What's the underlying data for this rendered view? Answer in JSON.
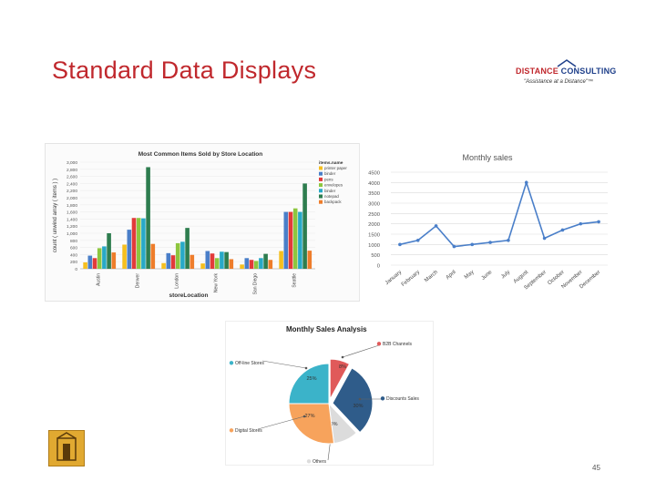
{
  "slide": {
    "title": "Standard Data Displays",
    "page_number": "45",
    "logo": {
      "name_part1": "DISTANCE",
      "name_part2": "CONSULTING",
      "tagline": "\"Assistance at a Distance\"™"
    }
  },
  "colors": {
    "title": "#c0282d",
    "line": "#4a7fc9"
  },
  "chart_data": [
    {
      "type": "bar",
      "title": "Most Common Items Sold by Store Location",
      "xlabel": "storeLocation",
      "ylabel": "count ( unwind array ( items ) )",
      "ylim": [
        0,
        3000
      ],
      "yticks": [
        "3,000",
        "2,800",
        "2,600",
        "2,400",
        "2,200",
        "2,000",
        "1,800",
        "1,600",
        "1,400",
        "1,200",
        "1,000",
        "800",
        "600",
        "400",
        "200",
        "0"
      ],
      "legend_title": "items.name",
      "legend_position": "top-right",
      "categories": [
        "Austin",
        "Denver",
        "London",
        "New York",
        "San Diego",
        "Seattle"
      ],
      "series": [
        {
          "name": "printer paper",
          "color": "#f5bf1f",
          "values": [
            180,
            680,
            160,
            150,
            120,
            500
          ]
        },
        {
          "name": "binder",
          "color": "#4a7fc9",
          "values": [
            370,
            1100,
            440,
            500,
            300,
            1600
          ]
        },
        {
          "name": "pens",
          "color": "#e23a3a",
          "values": [
            300,
            1430,
            380,
            430,
            250,
            1600
          ]
        },
        {
          "name": "envelopes",
          "color": "#8dc63f",
          "values": [
            580,
            1430,
            720,
            300,
            220,
            1700
          ]
        },
        {
          "name": "binder",
          "color": "#28a9c7",
          "values": [
            630,
            1420,
            760,
            480,
            300,
            1600
          ]
        },
        {
          "name": "notepad",
          "color": "#2e7d4f",
          "values": [
            1000,
            2860,
            1150,
            470,
            420,
            2400
          ]
        },
        {
          "name": "backpack",
          "color": "#ee7d2b",
          "values": [
            460,
            700,
            390,
            270,
            250,
            510
          ]
        }
      ]
    },
    {
      "type": "line",
      "title": "Monthly sales",
      "ylim": [
        0,
        4500
      ],
      "yticks": [
        "4500",
        "4000",
        "3500",
        "3000",
        "2500",
        "2000",
        "1500",
        "1000",
        "500",
        "0"
      ],
      "categories": [
        "January",
        "February",
        "March",
        "April",
        "May",
        "June",
        "July",
        "August",
        "September",
        "October",
        "November",
        "December"
      ],
      "values": [
        1000,
        1200,
        1900,
        900,
        1000,
        1100,
        1200,
        4000,
        1300,
        1700,
        2000,
        2100
      ]
    },
    {
      "type": "pie",
      "title": "Monthly Sales Analysis",
      "slices": [
        {
          "label": "B2B Channels",
          "value": 8,
          "text": "8%",
          "color": "#e05a5a",
          "leader": [
            [
              128,
              39
            ],
            [
              168,
              26
            ]
          ],
          "label_xy": [
            172,
            26
          ],
          "anchor": "start",
          "pct_xy": [
            128,
            51
          ]
        },
        {
          "label": "Discounts Sales",
          "value": 30,
          "text": "30%",
          "color": "#2f5c8a",
          "leader": [
            [
              147,
              85
            ],
            [
              172,
              85
            ]
          ],
          "label_xy": [
            176,
            86
          ],
          "anchor": "start",
          "pct_xy": [
            145,
            94
          ]
        },
        {
          "label": "Others",
          "value": 10,
          "text": "10%",
          "color": "#dcdcdc",
          "leader": [
            [
              115,
              128
            ],
            [
              112,
              152
            ]
          ],
          "label_xy": [
            95,
            155
          ],
          "anchor": "start",
          "pct_xy": [
            117,
            114
          ]
        },
        {
          "label": "Digital Stores",
          "value": 27,
          "text": "27%",
          "color": "#f7a35c",
          "leader": [
            [
              86,
              104
            ],
            [
              35,
              118
            ]
          ],
          "label_xy": [
            10,
            121
          ],
          "anchor": "start",
          "pct_xy": [
            92,
            105
          ]
        },
        {
          "label": "Off-line Stores",
          "value": 25,
          "text": "25%",
          "color": "#3bb3c9",
          "leader": [
            [
              88,
              51
            ],
            [
              40,
              43
            ]
          ],
          "label_xy": [
            10,
            47
          ],
          "anchor": "start",
          "pct_xy": [
            94,
            64
          ]
        }
      ]
    }
  ]
}
